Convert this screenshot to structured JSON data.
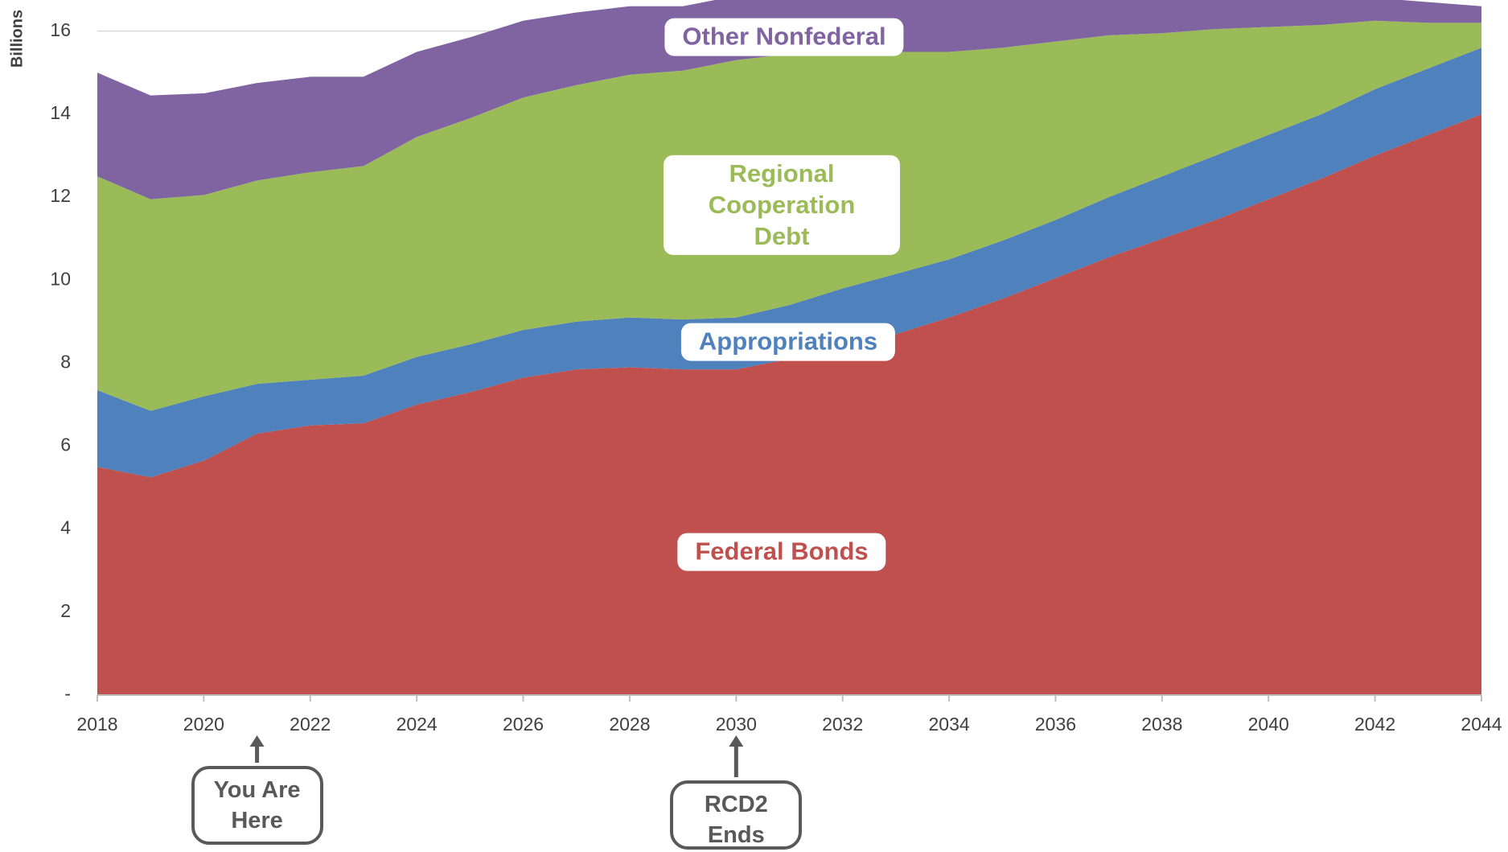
{
  "chart_data": {
    "type": "stacked-area",
    "y_axis_label": "Billions",
    "x": [
      2018,
      2019,
      2020,
      2021,
      2022,
      2023,
      2024,
      2025,
      2026,
      2027,
      2028,
      2029,
      2030,
      2031,
      2032,
      2033,
      2034,
      2035,
      2036,
      2037,
      2038,
      2039,
      2040,
      2041,
      2042,
      2043,
      2044
    ],
    "series": [
      {
        "name": "Federal Bonds",
        "color": "#c0504d",
        "values": [
          5.5,
          5.25,
          5.65,
          6.3,
          6.5,
          6.55,
          7.0,
          7.3,
          7.65,
          7.85,
          7.9,
          7.85,
          7.85,
          8.1,
          8.3,
          8.7,
          9.1,
          9.55,
          10.05,
          10.55,
          11.0,
          11.45,
          11.95,
          12.45,
          13.0,
          13.5,
          14.0
        ]
      },
      {
        "name": "Appropriations",
        "color": "#4f81bd",
        "values": [
          1.85,
          1.6,
          1.55,
          1.2,
          1.1,
          1.15,
          1.15,
          1.15,
          1.15,
          1.15,
          1.2,
          1.2,
          1.25,
          1.3,
          1.5,
          1.45,
          1.4,
          1.4,
          1.4,
          1.45,
          1.5,
          1.55,
          1.55,
          1.55,
          1.6,
          1.6,
          1.6
        ]
      },
      {
        "name": "Regional Cooperation Debt",
        "color": "#9bbb59",
        "values": [
          5.15,
          5.1,
          4.85,
          4.9,
          5.0,
          5.05,
          5.3,
          5.45,
          5.6,
          5.7,
          5.85,
          6.0,
          6.2,
          6.05,
          5.65,
          5.35,
          5.0,
          4.65,
          4.3,
          3.9,
          3.45,
          3.05,
          2.6,
          2.15,
          1.65,
          1.1,
          0.6
        ]
      },
      {
        "name": "Other Nonfederal",
        "color": "#8064a2",
        "values": [
          2.5,
          2.5,
          2.45,
          2.35,
          2.3,
          2.15,
          2.05,
          1.95,
          1.85,
          1.75,
          1.65,
          1.55,
          1.55,
          1.55,
          1.6,
          1.55,
          1.5,
          1.4,
          1.25,
          1.1,
          1.05,
          0.95,
          0.9,
          0.75,
          0.55,
          0.5,
          0.4
        ]
      }
    ],
    "xlim": [
      2018,
      2044
    ],
    "xticks": [
      2018,
      2020,
      2022,
      2024,
      2026,
      2028,
      2030,
      2032,
      2034,
      2036,
      2038,
      2040,
      2042,
      2044
    ],
    "ylim": [
      0,
      16.75
    ],
    "yticks": [
      {
        "value": 0,
        "label": "-"
      },
      2,
      4,
      6,
      8,
      10,
      12,
      14,
      16
    ],
    "grid": true,
    "annotations": [
      {
        "text": "You Are Here",
        "x": 2021
      },
      {
        "text": "RCD2 Ends",
        "x": 2030
      }
    ]
  }
}
